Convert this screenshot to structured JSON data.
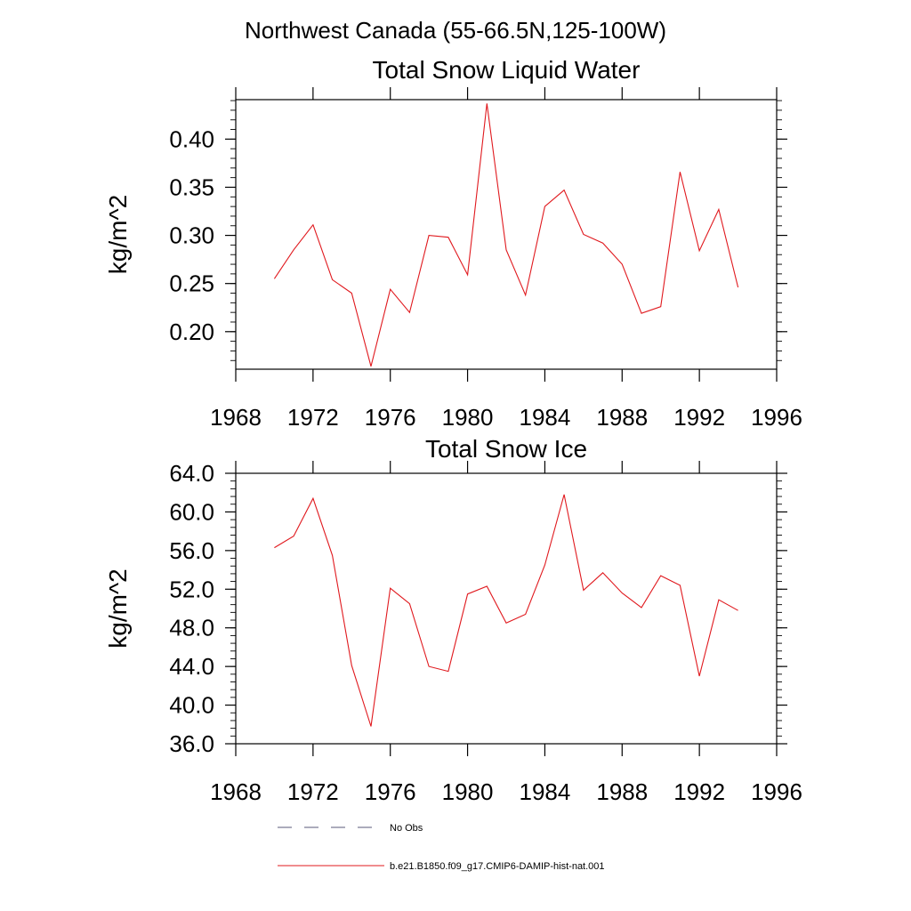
{
  "figure": {
    "title": "Northwest Canada (55-66.5N,125-100W)"
  },
  "colors": {
    "model_line": "#e0191e",
    "obs_line": "#5a5a78",
    "axis": "#000000"
  },
  "legend": {
    "placement": "bottom",
    "items": [
      {
        "label": "No Obs",
        "style": "dashed",
        "color": "#5a5a78"
      },
      {
        "label": "b.e21.B1850.f09_g17.CMIP6-DAMIP-hist-nat.001",
        "style": "solid",
        "color": "#e0191e"
      }
    ]
  },
  "chart_data": [
    {
      "type": "line",
      "title": "Total Snow Liquid Water",
      "xlabel": "",
      "ylabel": "kg/m^2",
      "xlim": [
        1968,
        1996
      ],
      "ylim": [
        0.161,
        0.441
      ],
      "xticks": [
        1968,
        1972,
        1976,
        1980,
        1984,
        1988,
        1992,
        1996
      ],
      "xtick_labels": [
        "1968",
        "1972",
        "1976",
        "1980",
        "1984",
        "1988",
        "1992",
        "1996"
      ],
      "yticks": [
        0.2,
        0.25,
        0.3,
        0.35,
        0.4
      ],
      "ytick_labels": [
        "0.20",
        "0.25",
        "0.30",
        "0.35",
        "0.40"
      ],
      "grid": false,
      "series": [
        {
          "name": "b.e21.B1850.f09_g17.CMIP6-DAMIP-hist-nat.001",
          "color": "#e0191e",
          "x": [
            1970,
            1971,
            1972,
            1973,
            1974,
            1975,
            1976,
            1977,
            1978,
            1979,
            1980,
            1981,
            1982,
            1983,
            1984,
            1985,
            1986,
            1987,
            1988,
            1989,
            1990,
            1991,
            1992,
            1993,
            1994
          ],
          "y": [
            0.255,
            0.285,
            0.311,
            0.254,
            0.24,
            0.164,
            0.244,
            0.22,
            0.3,
            0.298,
            0.259,
            0.437,
            0.285,
            0.238,
            0.33,
            0.347,
            0.301,
            0.292,
            0.27,
            0.219,
            0.226,
            0.366,
            0.284,
            0.327,
            0.246
          ]
        }
      ]
    },
    {
      "type": "line",
      "title": "Total Snow Ice",
      "xlabel": "",
      "ylabel": "kg/m^2",
      "xlim": [
        1968,
        1996
      ],
      "ylim": [
        36.0,
        64.0
      ],
      "xticks": [
        1968,
        1972,
        1976,
        1980,
        1984,
        1988,
        1992,
        1996
      ],
      "xtick_labels": [
        "1968",
        "1972",
        "1976",
        "1980",
        "1984",
        "1988",
        "1992",
        "1996"
      ],
      "yticks": [
        36,
        40,
        44,
        48,
        52,
        56,
        60,
        64
      ],
      "ytick_labels": [
        "36.0",
        "40.0",
        "44.0",
        "48.0",
        "52.0",
        "56.0",
        "60.0",
        "64.0"
      ],
      "grid": false,
      "series": [
        {
          "name": "b.e21.B1850.f09_g17.CMIP6-DAMIP-hist-nat.001",
          "color": "#e0191e",
          "x": [
            1970,
            1971,
            1972,
            1973,
            1974,
            1975,
            1976,
            1977,
            1978,
            1979,
            1980,
            1981,
            1982,
            1983,
            1984,
            1985,
            1986,
            1987,
            1988,
            1989,
            1990,
            1991,
            1992,
            1993,
            1994
          ],
          "y": [
            56.3,
            57.5,
            61.4,
            55.5,
            44.1,
            37.8,
            52.1,
            50.5,
            44.0,
            43.5,
            51.5,
            52.3,
            48.5,
            49.4,
            54.5,
            61.8,
            51.9,
            53.7,
            51.6,
            50.1,
            53.4,
            52.4,
            43.0,
            50.9,
            49.8
          ]
        }
      ]
    }
  ]
}
